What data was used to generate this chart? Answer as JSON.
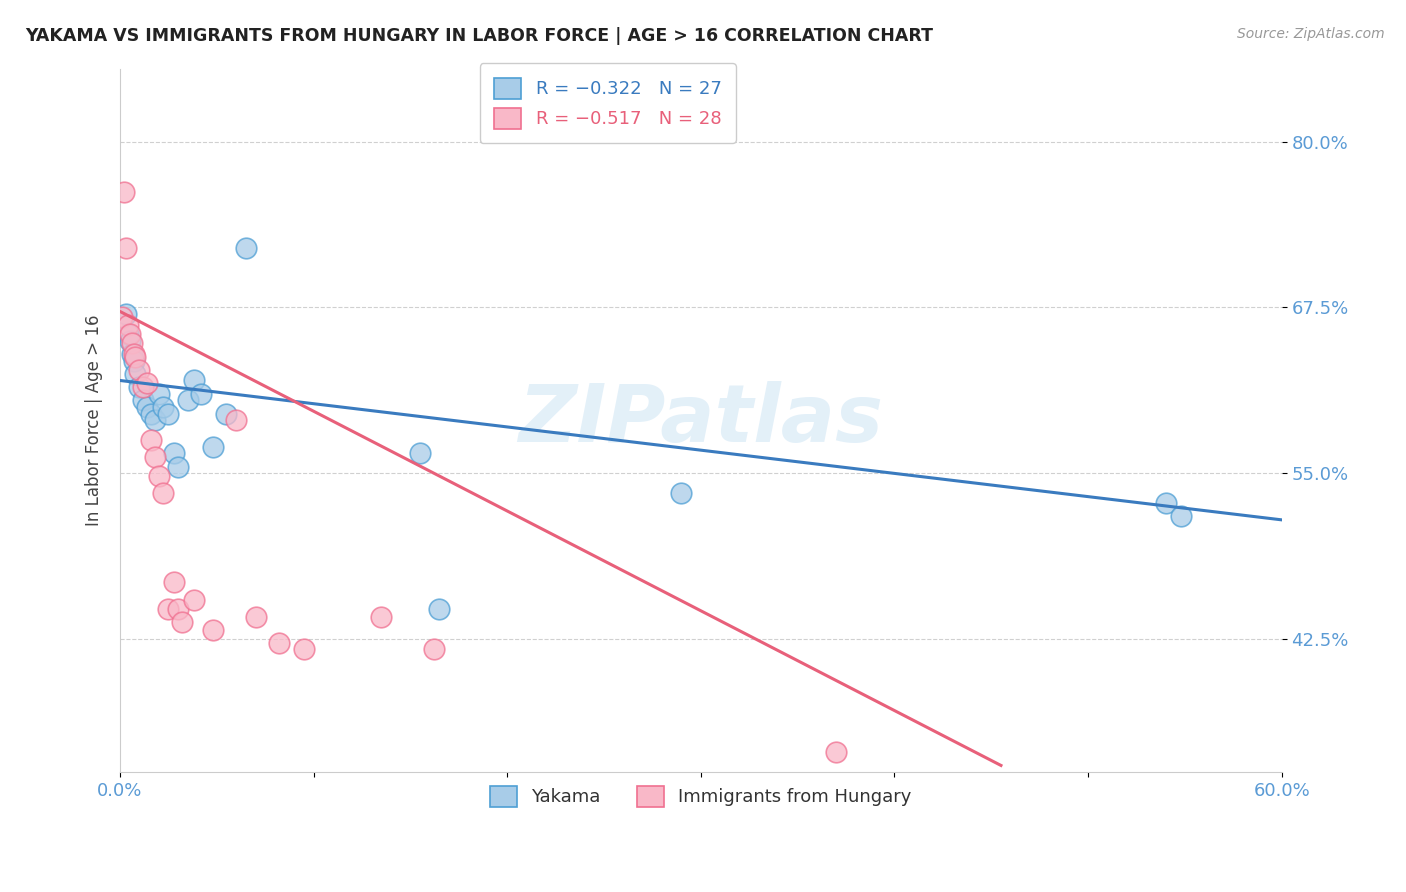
{
  "title": "YAKAMA VS IMMIGRANTS FROM HUNGARY IN LABOR FORCE | AGE > 16 CORRELATION CHART",
  "source": "Source: ZipAtlas.com",
  "ylabel": "In Labor Force | Age > 16",
  "xlim": [
    0.0,
    0.6
  ],
  "ylim": [
    0.325,
    0.855
  ],
  "ytick_values": [
    0.425,
    0.55,
    0.675,
    0.8
  ],
  "xtick_values": [
    0.0,
    0.1,
    0.2,
    0.3,
    0.4,
    0.5,
    0.6
  ],
  "xtick_labels": [
    "0.0%",
    "",
    "",
    "",
    "",
    "",
    "60.0%"
  ],
  "legend_blue_R": "R = −0.322",
  "legend_blue_N": "N = 27",
  "legend_pink_R": "R = −0.517",
  "legend_pink_N": "N = 28",
  "blue_scatter_color": "#a8cce8",
  "blue_edge_color": "#4e9fd4",
  "pink_scatter_color": "#f9b8c8",
  "pink_edge_color": "#f07090",
  "line_blue_color": "#3a7bbf",
  "line_pink_color": "#e8607a",
  "tick_color": "#5b9bd5",
  "watermark": "ZIPatlas",
  "yakama_x": [
    0.003,
    0.004,
    0.005,
    0.006,
    0.007,
    0.008,
    0.01,
    0.012,
    0.014,
    0.016,
    0.018,
    0.02,
    0.022,
    0.025,
    0.028,
    0.03,
    0.035,
    0.038,
    0.042,
    0.048,
    0.055,
    0.065,
    0.155,
    0.165,
    0.29,
    0.54,
    0.548
  ],
  "yakama_y": [
    0.67,
    0.655,
    0.65,
    0.64,
    0.635,
    0.625,
    0.615,
    0.605,
    0.6,
    0.595,
    0.59,
    0.61,
    0.6,
    0.595,
    0.565,
    0.555,
    0.605,
    0.62,
    0.61,
    0.57,
    0.595,
    0.72,
    0.565,
    0.448,
    0.535,
    0.528,
    0.518
  ],
  "hungary_x": [
    0.001,
    0.002,
    0.003,
    0.004,
    0.005,
    0.006,
    0.007,
    0.008,
    0.01,
    0.012,
    0.014,
    0.016,
    0.018,
    0.02,
    0.022,
    0.025,
    0.028,
    0.03,
    0.032,
    0.038,
    0.048,
    0.06,
    0.07,
    0.082,
    0.095,
    0.135,
    0.162,
    0.37
  ],
  "hungary_y": [
    0.668,
    0.762,
    0.72,
    0.662,
    0.655,
    0.648,
    0.64,
    0.638,
    0.628,
    0.615,
    0.618,
    0.575,
    0.562,
    0.548,
    0.535,
    0.448,
    0.468,
    0.448,
    0.438,
    0.455,
    0.432,
    0.59,
    0.442,
    0.422,
    0.418,
    0.442,
    0.418,
    0.34
  ],
  "blue_trendline_x": [
    0.0,
    0.6
  ],
  "blue_trendline_y": [
    0.62,
    0.515
  ],
  "pink_trendline_x": [
    0.0,
    0.455
  ],
  "pink_trendline_y": [
    0.672,
    0.33
  ]
}
